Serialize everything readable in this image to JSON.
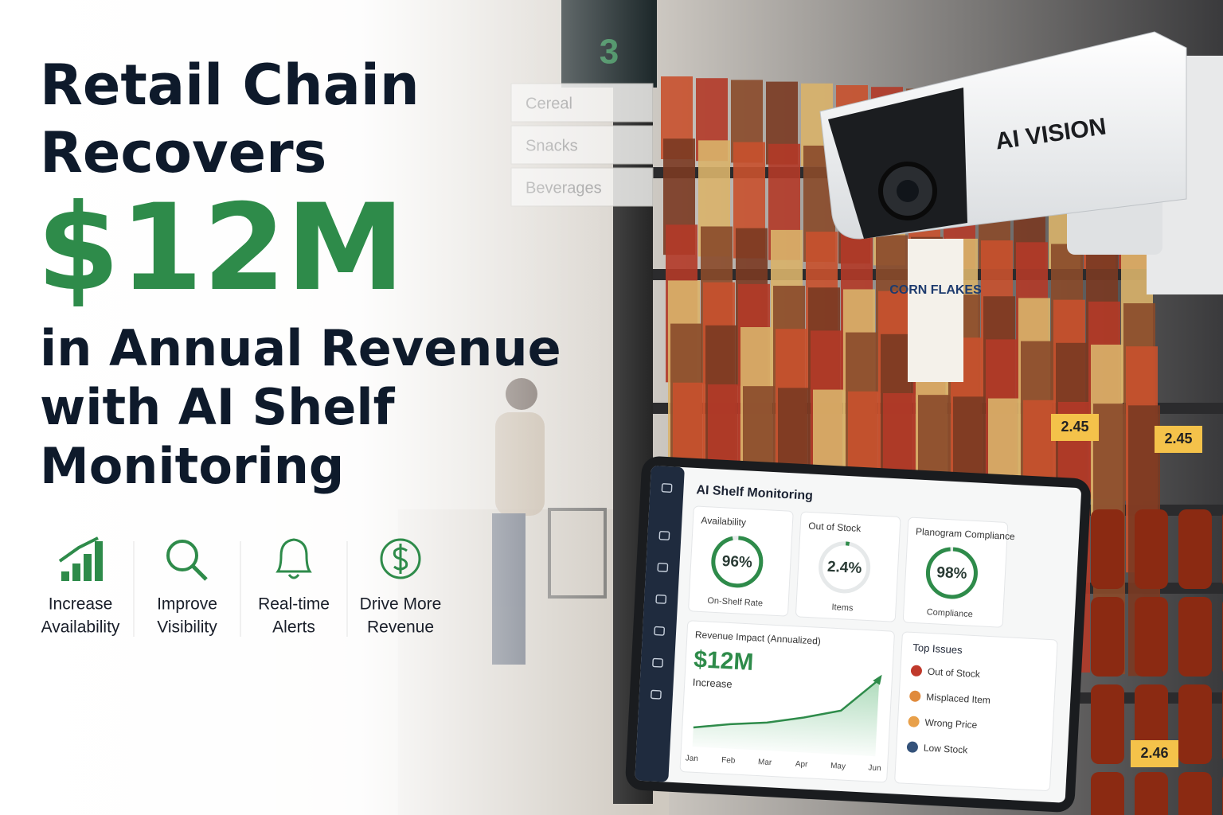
{
  "headline": {
    "lines_top": [
      "Retail Chain",
      "Recovers"
    ],
    "amount": "$12M",
    "lines_bottom": [
      "in Annual Revenue",
      "with AI Shelf",
      "Monitoring"
    ]
  },
  "features": [
    {
      "lines": [
        "Increase",
        "Availability"
      ]
    },
    {
      "lines": [
        "Improve",
        "Visibility"
      ]
    },
    {
      "lines": [
        "Real-time",
        "Alerts"
      ]
    },
    {
      "lines": [
        "Drive More",
        "Revenue"
      ]
    }
  ],
  "scene": {
    "aisle_number": "3",
    "aisle_signs": [
      "Cereal",
      "Snacks",
      "Beverages"
    ],
    "camera_label": "AI VISION",
    "box_label": "CORN FLAKES",
    "price_tags": [
      "2.45",
      "2.45",
      "2.46"
    ]
  },
  "dashboard": {
    "title": "AI Shelf Monitoring",
    "metrics": [
      {
        "label": "Availability",
        "value": 96,
        "value_label": "96%",
        "sublabel": "On-Shelf Rate"
      },
      {
        "label": "Out of Stock",
        "value": 2.4,
        "value_label": "2.4%",
        "sublabel": "Items"
      },
      {
        "label": "Planogram Compliance",
        "value": 98,
        "value_label": "98%",
        "sublabel": "Compliance"
      }
    ],
    "revenue": {
      "title": "Revenue Impact (Annualized)",
      "amount": "$12M",
      "sublabel": "Increase",
      "chart": {
        "type": "line",
        "categories": [
          "Jan",
          "Feb",
          "Mar",
          "Apr",
          "May",
          "Jun"
        ],
        "values": [
          22,
          28,
          32,
          40,
          50,
          88
        ],
        "ylim": [
          0,
          100
        ],
        "color": "#2e8b4a"
      }
    },
    "issues": {
      "title": "Top Issues",
      "items": [
        "Out of Stock",
        "Misplaced Item",
        "Wrong Price",
        "Low Stock"
      ]
    }
  }
}
